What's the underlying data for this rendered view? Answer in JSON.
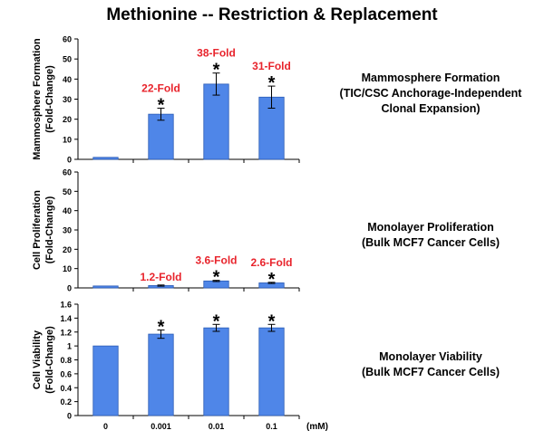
{
  "title": "Methionine -- Restriction & Replacement",
  "colors": {
    "bar": "#4f86e8",
    "bar_stroke": "#2a5bb5",
    "fold_label": "#e8242c",
    "axis": "#000000"
  },
  "x_unit_label": "(mM)",
  "panel_labels": [
    {
      "line1": "Mammosphere Formation",
      "line2": "(TIC/CSC Anchorage-Independent",
      "line3": "Clonal Expansion)"
    },
    {
      "line1": "Monolayer Proliferation",
      "line2": "(Bulk MCF7 Cancer Cells)"
    },
    {
      "line1": "Monolayer Viability",
      "line2": "(Bulk MCF7 Cancer Cells)"
    }
  ],
  "chart_data": [
    {
      "type": "bar",
      "ylabel_line1": "Mammosphere Formation",
      "ylabel_line2": "(Fold-Change)",
      "categories": [
        "0",
        "0.001",
        "0.01",
        "0.1"
      ],
      "values": [
        1,
        22.5,
        37.5,
        31
      ],
      "errors": [
        0,
        3,
        5.5,
        5.5
      ],
      "annotations": [
        "",
        "22-Fold",
        "38-Fold",
        "31-Fold"
      ],
      "significance": [
        "",
        "*",
        "*",
        "*"
      ],
      "ylim": [
        0,
        60
      ],
      "yticks": [
        "0",
        "10",
        "20",
        "30",
        "40",
        "50",
        "60"
      ],
      "show_xtick_labels": false
    },
    {
      "type": "bar",
      "ylabel_line1": "Cell Proliferation",
      "ylabel_line2": "(Fold-Change)",
      "categories": [
        "0",
        "0.001",
        "0.01",
        "0.1"
      ],
      "values": [
        1,
        1.2,
        3.6,
        2.6
      ],
      "errors": [
        0,
        0.3,
        0.3,
        0.3
      ],
      "annotations": [
        "",
        "1.2-Fold",
        "3.6-Fold",
        "2.6-Fold"
      ],
      "significance": [
        "",
        "",
        "*",
        "*"
      ],
      "ylim": [
        0,
        60
      ],
      "yticks": [
        "0",
        "10",
        "20",
        "30",
        "40",
        "50",
        "60"
      ],
      "show_xtick_labels": false
    },
    {
      "type": "bar",
      "ylabel_line1": "Cell Viability",
      "ylabel_line2": "(Fold-Change)",
      "categories": [
        "0",
        "0.001",
        "0.01",
        "0.1"
      ],
      "values": [
        1,
        1.17,
        1.26,
        1.26
      ],
      "errors": [
        0,
        0.06,
        0.05,
        0.05
      ],
      "annotations": [
        "",
        "",
        "",
        ""
      ],
      "significance": [
        "",
        "*",
        "*",
        "*"
      ],
      "ylim": [
        0,
        1.6
      ],
      "yticks": [
        "0",
        "0.2",
        "0.4",
        "0.6",
        "0.8",
        "1",
        "1.2",
        "1.4",
        "1.6"
      ],
      "show_xtick_labels": true
    }
  ]
}
